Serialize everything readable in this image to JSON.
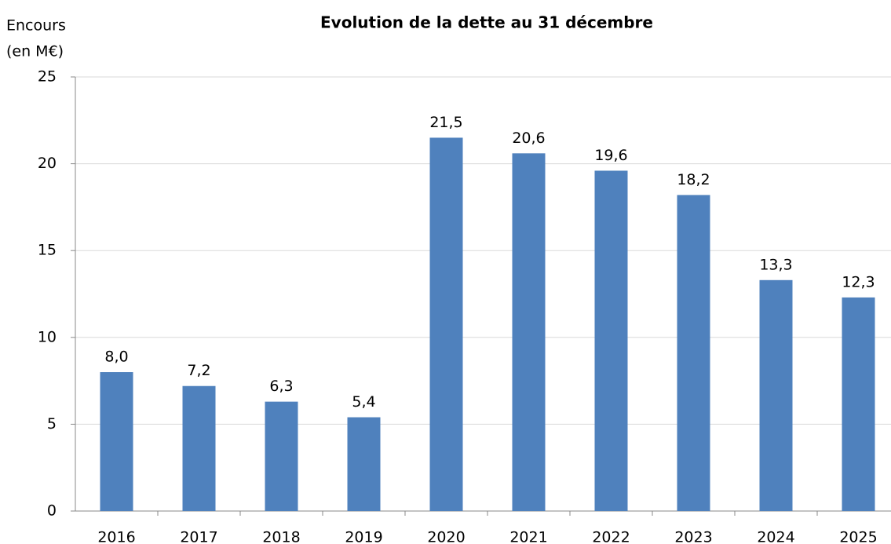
{
  "chart_data": {
    "type": "bar",
    "title": "Evolution de la dette au 31 décembre",
    "y_label": [
      "Encours",
      "(en M€)"
    ],
    "categories": [
      "2016",
      "2017",
      "2018",
      "2019",
      "2020",
      "2021",
      "2022",
      "2023",
      "2024",
      "2025"
    ],
    "values": [
      8.0,
      7.2,
      6.3,
      5.4,
      21.5,
      20.6,
      19.6,
      18.2,
      13.3,
      12.3
    ],
    "value_labels": [
      "8,0",
      "7,2",
      "6,3",
      "5,4",
      "21,5",
      "20,6",
      "19,6",
      "18,2",
      "13,3",
      "12,3"
    ],
    "color": "#4f81bd",
    "ylim": [
      0,
      25
    ],
    "yticks": [
      0,
      5,
      10,
      15,
      20,
      25
    ],
    "grid": true
  }
}
